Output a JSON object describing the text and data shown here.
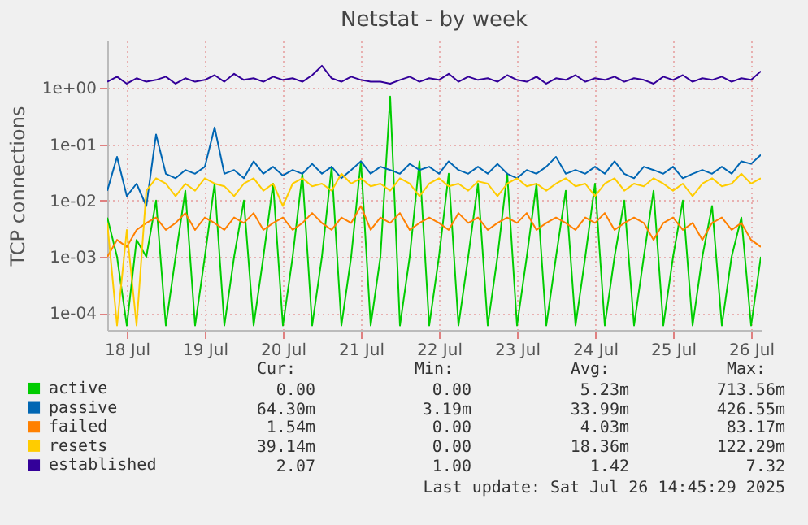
{
  "chart_data": {
    "type": "line",
    "title": "Netstat - by week",
    "ylabel": "TCP connections",
    "log": "y",
    "grid": true,
    "legend": "bottom",
    "xlim": [
      "2025-07-17T18:00",
      "2025-07-26T03:00"
    ],
    "xticks": [
      {
        "value": "2025-07-18T00:00",
        "label": "18 Jul"
      },
      {
        "value": "2025-07-19T00:00",
        "label": "19 Jul"
      },
      {
        "value": "2025-07-20T00:00",
        "label": "20 Jul"
      },
      {
        "value": "2025-07-21T00:00",
        "label": "21 Jul"
      },
      {
        "value": "2025-07-22T00:00",
        "label": "22 Jul"
      },
      {
        "value": "2025-07-23T00:00",
        "label": "23 Jul"
      },
      {
        "value": "2025-07-24T00:00",
        "label": "24 Jul"
      },
      {
        "value": "2025-07-25T00:00",
        "label": "25 Jul"
      },
      {
        "value": "2025-07-26T00:00",
        "label": "26 Jul"
      }
    ],
    "ylim": [
      5e-05,
      7
    ],
    "yticks": [
      {
        "value": 0.0001,
        "label": "1e-04"
      },
      {
        "value": 0.001,
        "label": "1e-03"
      },
      {
        "value": 0.01,
        "label": "1e-02"
      },
      {
        "value": 0.1,
        "label": "1e-01"
      },
      {
        "value": 1,
        "label": "1e+00"
      }
    ],
    "x": [
      "2025-07-17T18:00",
      "2025-07-17T21:00",
      "2025-07-18T00:00",
      "2025-07-18T03:00",
      "2025-07-18T06:00",
      "2025-07-18T09:00",
      "2025-07-18T12:00",
      "2025-07-18T15:00",
      "2025-07-18T18:00",
      "2025-07-18T21:00",
      "2025-07-19T00:00",
      "2025-07-19T03:00",
      "2025-07-19T06:00",
      "2025-07-19T09:00",
      "2025-07-19T12:00",
      "2025-07-19T15:00",
      "2025-07-19T18:00",
      "2025-07-19T21:00",
      "2025-07-20T00:00",
      "2025-07-20T03:00",
      "2025-07-20T06:00",
      "2025-07-20T09:00",
      "2025-07-20T12:00",
      "2025-07-20T15:00",
      "2025-07-20T18:00",
      "2025-07-20T21:00",
      "2025-07-21T00:00",
      "2025-07-21T03:00",
      "2025-07-21T06:00",
      "2025-07-21T09:00",
      "2025-07-21T12:00",
      "2025-07-21T15:00",
      "2025-07-21T18:00",
      "2025-07-21T21:00",
      "2025-07-22T00:00",
      "2025-07-22T03:00",
      "2025-07-22T06:00",
      "2025-07-22T09:00",
      "2025-07-22T12:00",
      "2025-07-22T15:00",
      "2025-07-22T18:00",
      "2025-07-22T21:00",
      "2025-07-23T00:00",
      "2025-07-23T03:00",
      "2025-07-23T06:00",
      "2025-07-23T09:00",
      "2025-07-23T12:00",
      "2025-07-23T15:00",
      "2025-07-23T18:00",
      "2025-07-23T21:00",
      "2025-07-24T00:00",
      "2025-07-24T03:00",
      "2025-07-24T06:00",
      "2025-07-24T09:00",
      "2025-07-24T12:00",
      "2025-07-24T15:00",
      "2025-07-24T18:00",
      "2025-07-24T21:00",
      "2025-07-25T00:00",
      "2025-07-25T03:00",
      "2025-07-25T06:00",
      "2025-07-25T09:00",
      "2025-07-25T12:00",
      "2025-07-25T15:00",
      "2025-07-25T18:00",
      "2025-07-25T21:00",
      "2025-07-26T00:00",
      "2025-07-26T03:00"
    ],
    "series": [
      {
        "name": "active",
        "color": "#00cc00",
        "values": [
          0.005,
          0.001,
          6e-05,
          0.002,
          0.001,
          0.01,
          6e-05,
          0.001,
          0.015,
          6e-05,
          0.001,
          0.02,
          6e-05,
          0.001,
          0.01,
          6e-05,
          0.001,
          0.02,
          6e-05,
          0.001,
          0.03,
          6e-05,
          0.001,
          0.04,
          6e-05,
          0.001,
          0.05,
          6e-05,
          0.001,
          0.71,
          6e-05,
          0.001,
          0.05,
          6e-05,
          0.001,
          0.03,
          6e-05,
          0.001,
          0.02,
          6e-05,
          0.001,
          0.03,
          6e-05,
          0.001,
          0.02,
          6e-05,
          0.001,
          0.015,
          6e-05,
          0.001,
          0.02,
          6e-05,
          0.001,
          0.01,
          6e-05,
          0.001,
          0.015,
          6e-05,
          0.001,
          0.01,
          6e-05,
          0.001,
          0.008,
          6e-05,
          0.001,
          0.005,
          6e-05,
          0.001
        ]
      },
      {
        "name": "passive",
        "color": "#0066b3",
        "values": [
          0.015,
          0.06,
          0.012,
          0.02,
          0.008,
          0.15,
          0.03,
          0.025,
          0.035,
          0.03,
          0.04,
          0.2,
          0.03,
          0.035,
          0.025,
          0.05,
          0.03,
          0.04,
          0.028,
          0.035,
          0.03,
          0.045,
          0.03,
          0.04,
          0.025,
          0.035,
          0.05,
          0.03,
          0.04,
          0.035,
          0.03,
          0.045,
          0.035,
          0.04,
          0.03,
          0.05,
          0.035,
          0.03,
          0.04,
          0.03,
          0.045,
          0.03,
          0.025,
          0.035,
          0.03,
          0.04,
          0.06,
          0.03,
          0.035,
          0.03,
          0.04,
          0.03,
          0.05,
          0.03,
          0.025,
          0.04,
          0.035,
          0.03,
          0.04,
          0.025,
          0.03,
          0.035,
          0.03,
          0.04,
          0.03,
          0.05,
          0.045,
          0.065
        ]
      },
      {
        "name": "failed",
        "color": "#ff8000",
        "values": [
          0.001,
          0.002,
          0.0015,
          0.003,
          0.004,
          0.005,
          0.003,
          0.004,
          0.006,
          0.003,
          0.005,
          0.004,
          0.003,
          0.005,
          0.004,
          0.006,
          0.003,
          0.004,
          0.005,
          0.003,
          0.004,
          0.006,
          0.004,
          0.003,
          0.005,
          0.004,
          0.008,
          0.003,
          0.005,
          0.004,
          0.006,
          0.003,
          0.004,
          0.005,
          0.004,
          0.003,
          0.006,
          0.004,
          0.005,
          0.003,
          0.004,
          0.005,
          0.004,
          0.006,
          0.003,
          0.004,
          0.005,
          0.004,
          0.003,
          0.005,
          0.004,
          0.006,
          0.003,
          0.004,
          0.005,
          0.004,
          0.002,
          0.004,
          0.005,
          0.003,
          0.004,
          0.002,
          0.004,
          0.005,
          0.003,
          0.004,
          0.002,
          0.0015
        ]
      },
      {
        "name": "resets",
        "color": "#ffcc00",
        "values": [
          0.004,
          6e-05,
          0.003,
          6e-05,
          0.015,
          0.025,
          0.02,
          0.012,
          0.02,
          0.015,
          0.025,
          0.02,
          0.018,
          0.012,
          0.02,
          0.025,
          0.015,
          0.02,
          0.008,
          0.02,
          0.025,
          0.018,
          0.02,
          0.015,
          0.03,
          0.02,
          0.025,
          0.018,
          0.02,
          0.015,
          0.025,
          0.02,
          0.012,
          0.02,
          0.025,
          0.018,
          0.02,
          0.015,
          0.022,
          0.02,
          0.012,
          0.02,
          0.025,
          0.018,
          0.02,
          0.015,
          0.02,
          0.025,
          0.018,
          0.02,
          0.012,
          0.02,
          0.025,
          0.015,
          0.02,
          0.018,
          0.025,
          0.02,
          0.015,
          0.02,
          0.012,
          0.02,
          0.025,
          0.018,
          0.02,
          0.03,
          0.02,
          0.025
        ]
      },
      {
        "name": "established",
        "color": "#330099",
        "values": [
          1.3,
          1.6,
          1.2,
          1.5,
          1.3,
          1.4,
          1.6,
          1.2,
          1.5,
          1.3,
          1.4,
          1.7,
          1.3,
          1.8,
          1.4,
          1.5,
          1.3,
          1.6,
          1.4,
          1.5,
          1.3,
          1.7,
          2.5,
          1.5,
          1.3,
          1.6,
          1.4,
          1.3,
          1.3,
          1.2,
          1.4,
          1.6,
          1.3,
          1.5,
          1.4,
          1.8,
          1.3,
          1.6,
          1.4,
          1.5,
          1.3,
          1.7,
          1.4,
          1.3,
          1.6,
          1.2,
          1.5,
          1.4,
          1.7,
          1.3,
          1.5,
          1.4,
          1.6,
          1.3,
          1.5,
          1.4,
          1.2,
          1.6,
          1.4,
          1.7,
          1.3,
          1.5,
          1.4,
          1.6,
          1.3,
          1.5,
          1.4,
          2.0
        ]
      }
    ],
    "annotations": [
      "Cur:",
      "Min:",
      "Avg:",
      "Max:",
      "0.00",
      "0.00",
      "5.23m",
      "713.56m",
      "64.30m",
      "3.19m",
      "33.99m",
      "426.55m",
      "1.54m",
      "0.00",
      "4.03m",
      "83.17m",
      "39.14m",
      "0.00",
      "18.36m",
      "122.29m",
      "2.07",
      "1.00",
      "1.42",
      "7.32",
      "Last update: Sat Jul 26 14:45:29 2025"
    ]
  }
}
